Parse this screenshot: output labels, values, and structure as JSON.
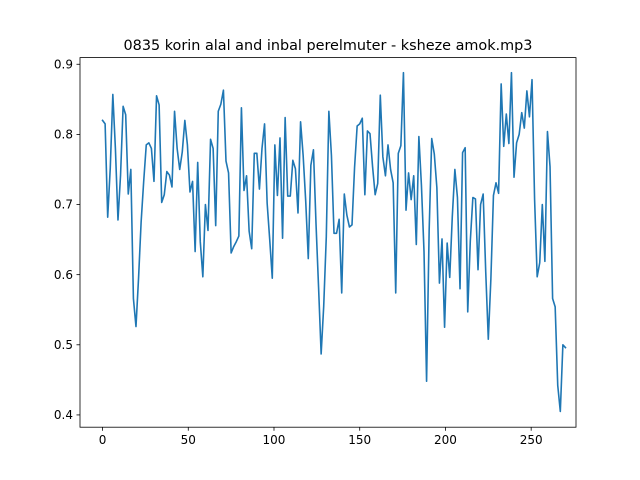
{
  "chart_data": {
    "type": "line",
    "title": "0835 korin alal and inbal perelmuter - ksheze amok.mp3",
    "xlabel": "",
    "ylabel": "",
    "xlim": [
      -13.15,
      276.15
    ],
    "ylim": [
      0.3825,
      0.9095
    ],
    "x_ticks": [
      0,
      50,
      100,
      150,
      200,
      250
    ],
    "x_tick_labels": [
      "0",
      "50",
      "100",
      "150",
      "200",
      "250"
    ],
    "y_ticks": [
      0.4,
      0.5,
      0.6,
      0.7,
      0.8,
      0.9
    ],
    "y_tick_labels": [
      "0.4",
      "0.5",
      "0.6",
      "0.7",
      "0.8",
      "0.9"
    ],
    "grid": false,
    "legend": "none",
    "colors": {
      "series": "#1f77b4",
      "axes": "#000000",
      "background": "#ffffff"
    },
    "series": [
      {
        "values": [
          0.82,
          0.815,
          0.682,
          0.752,
          0.857,
          0.78,
          0.678,
          0.742,
          0.84,
          0.828,
          0.715,
          0.75,
          0.566,
          0.526,
          0.595,
          0.675,
          0.733,
          0.785,
          0.788,
          0.78,
          0.733,
          0.855,
          0.842,
          0.703,
          0.714,
          0.747,
          0.742,
          0.725,
          0.833,
          0.78,
          0.75,
          0.775,
          0.82,
          0.785,
          0.718,
          0.733,
          0.633,
          0.76,
          0.647,
          0.597,
          0.7,
          0.663,
          0.793,
          0.78,
          0.67,
          0.833,
          0.843,
          0.863,
          0.762,
          0.745,
          0.631,
          0.64,
          0.647,
          0.655,
          0.838,
          0.72,
          0.741,
          0.662,
          0.637,
          0.773,
          0.773,
          0.722,
          0.78,
          0.815,
          0.702,
          0.65,
          0.595,
          0.785,
          0.713,
          0.795,
          0.652,
          0.824,
          0.712,
          0.712,
          0.763,
          0.751,
          0.688,
          0.818,
          0.77,
          0.705,
          0.623,
          0.756,
          0.778,
          0.673,
          0.582,
          0.487,
          0.555,
          0.654,
          0.833,
          0.77,
          0.659,
          0.659,
          0.679,
          0.574,
          0.715,
          0.685,
          0.668,
          0.671,
          0.753,
          0.812,
          0.815,
          0.823,
          0.714,
          0.805,
          0.801,
          0.754,
          0.714,
          0.73,
          0.856,
          0.768,
          0.741,
          0.785,
          0.75,
          0.731,
          0.574,
          0.773,
          0.784,
          0.888,
          0.692,
          0.745,
          0.707,
          0.741,
          0.643,
          0.797,
          0.727,
          0.633,
          0.448,
          0.663,
          0.794,
          0.772,
          0.724,
          0.588,
          0.651,
          0.525,
          0.645,
          0.596,
          0.683,
          0.75,
          0.71,
          0.58,
          0.774,
          0.781,
          0.547,
          0.648,
          0.71,
          0.708,
          0.607,
          0.7,
          0.715,
          0.604,
          0.508,
          0.594,
          0.713,
          0.731,
          0.716,
          0.872,
          0.783,
          0.829,
          0.787,
          0.888,
          0.739,
          0.788,
          0.8,
          0.831,
          0.809,
          0.862,
          0.825,
          0.878,
          0.707,
          0.597,
          0.617,
          0.7,
          0.619,
          0.804,
          0.754,
          0.566,
          0.554,
          0.442,
          0.405,
          0.5,
          0.496
        ]
      }
    ]
  }
}
